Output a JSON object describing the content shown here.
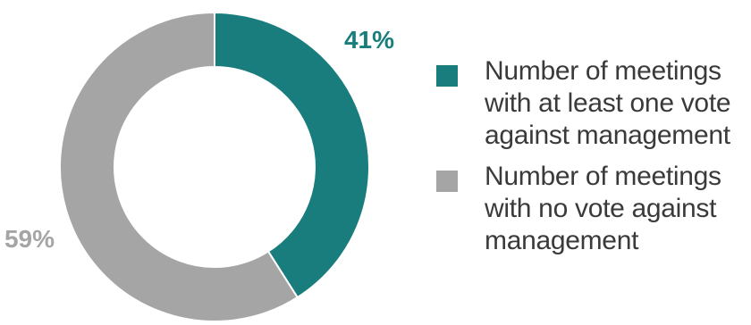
{
  "colors": {
    "teal": "#1a7d7d",
    "gray": "#a5a5a5",
    "text": "#3a3a3a"
  },
  "chart_data": {
    "type": "pie",
    "variant": "donut",
    "start_angle_deg": 0,
    "direction": "clockwise",
    "slices": [
      {
        "label": "Number of meetings with at least one vote against management",
        "value": 41,
        "display": "41%",
        "color": "#1a7d7d"
      },
      {
        "label": "Number of meetings with no vote against management",
        "value": 59,
        "display": "59%",
        "color": "#a5a5a5"
      }
    ],
    "legend_position": "right"
  },
  "legend": {
    "items": [
      {
        "label": "Number of meetings with at least one vote against management",
        "color": "#1a7d7d"
      },
      {
        "label": "Number of meetings with no vote against management",
        "color": "#a5a5a5"
      }
    ]
  }
}
